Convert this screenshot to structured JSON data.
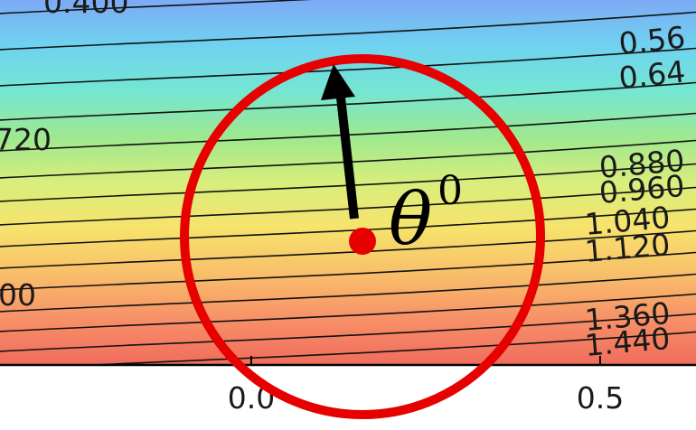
{
  "chart_data": {
    "type": "contour",
    "title": "",
    "xlabel": "",
    "ylabel": "",
    "x_ticks": [
      "0.0",
      "0.5"
    ],
    "contour_labels": [
      {
        "text": "0.400"
      },
      {
        "text": "0.56"
      },
      {
        "text": "0.64"
      },
      {
        "text": "720"
      },
      {
        "text": "0.880"
      },
      {
        "text": "0.960"
      },
      {
        "text": "1.040"
      },
      {
        "text": "1.120"
      },
      {
        "text": "00"
      },
      {
        "text": "1.360"
      },
      {
        "text": "1.440"
      }
    ],
    "colormap": [
      "#7eaaf5",
      "#6fd2f0",
      "#74e6d2",
      "#9ee890",
      "#d8ee7c",
      "#f7e36c",
      "#f8bf6a",
      "#f79068",
      "#f06c5c"
    ],
    "annotation": {
      "symbol": "θ",
      "superscript": "0",
      "marker_color": "#e60000",
      "circle_color": "#e60000",
      "arrow_color": "#000000"
    }
  }
}
